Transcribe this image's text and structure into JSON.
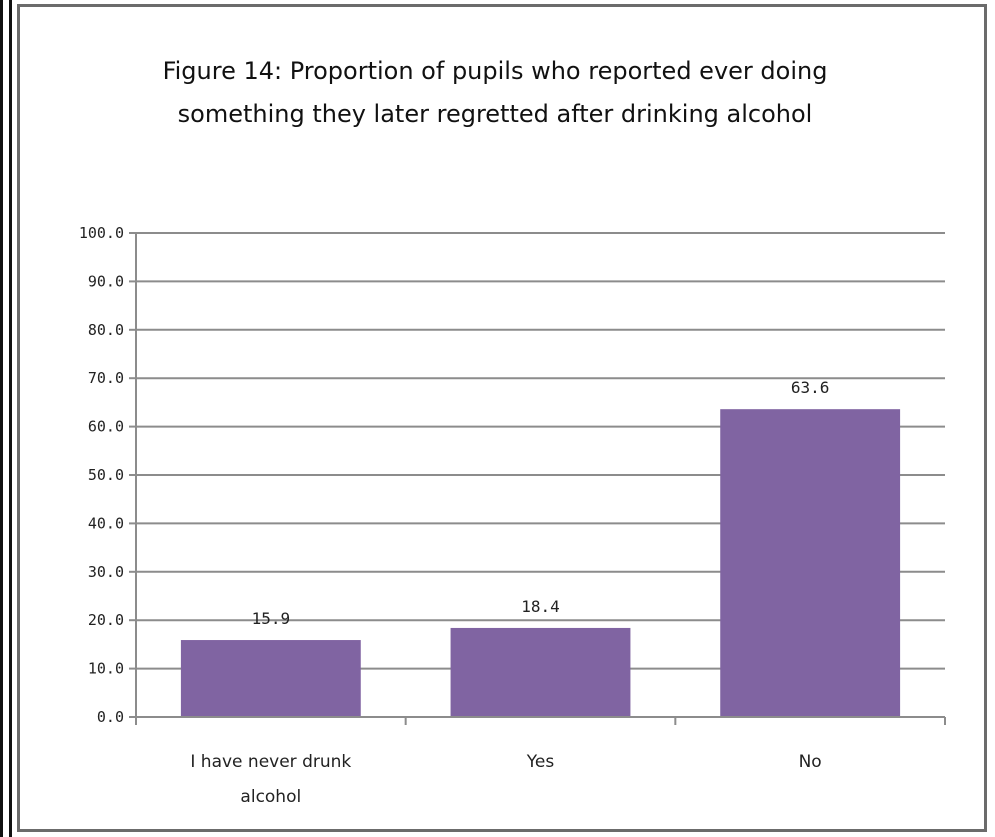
{
  "chart_data": {
    "type": "bar",
    "title": "Figure 14: Proportion of pupils who reported  ever doing something they later regretted after drinking alcohol",
    "categories": [
      "I have never drunk alcohol",
      "Yes",
      "No"
    ],
    "category_lines": [
      [
        "I have never drunk",
        "alcohol"
      ],
      [
        "Yes"
      ],
      [
        "No"
      ]
    ],
    "values": [
      15.9,
      18.4,
      63.6
    ],
    "value_labels": [
      "15.9",
      "18.4",
      "63.6"
    ],
    "ylim": [
      0,
      100
    ],
    "y_ticks": [
      "0.0",
      "10.0",
      "20.0",
      "30.0",
      "40.0",
      "50.0",
      "60.0",
      "70.0",
      "80.0",
      "90.0",
      "100.0"
    ],
    "xlabel": "",
    "ylabel": "",
    "grid": true,
    "legend": "none",
    "bar_color": "#8064a2",
    "grid_color": "#8c8c8c"
  }
}
